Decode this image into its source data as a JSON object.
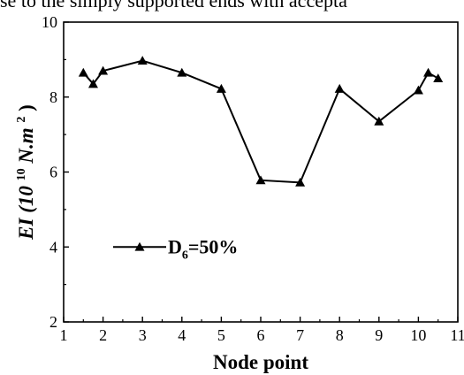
{
  "top_text": "se to the simply supported ends with accepta",
  "chart_data": {
    "type": "line",
    "xlabel": "Node point",
    "ylabel_main": "EI (10",
    "ylabel_exp": "10",
    "ylabel_unit": "N.m",
    "ylabel_unit_exp": "2",
    "ylabel_close": ")",
    "xlim": [
      1,
      11
    ],
    "ylim": [
      2,
      10
    ],
    "xticks": [
      1,
      2,
      3,
      4,
      5,
      6,
      7,
      8,
      9,
      10,
      11
    ],
    "yticks": [
      2,
      4,
      6,
      8,
      10
    ],
    "grid": false,
    "legend_position": "middle-left",
    "series": [
      {
        "name_main": "D",
        "name_sub": "6",
        "name_rest": "=50%",
        "marker": "triangle",
        "color": "#000000",
        "x": [
          1.5,
          1.75,
          2,
          3,
          4,
          5,
          6,
          7,
          8,
          9,
          10,
          10.25,
          10.5
        ],
        "y": [
          8.65,
          8.35,
          8.7,
          8.97,
          8.65,
          8.22,
          5.78,
          5.72,
          8.22,
          7.35,
          8.18,
          8.65,
          8.5
        ]
      }
    ]
  }
}
